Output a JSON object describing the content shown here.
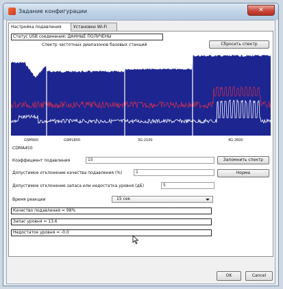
{
  "window": {
    "title": "Задание конфигурации",
    "close_label": "✕"
  },
  "tabs": [
    {
      "label": "Настройка подавления"
    },
    {
      "label": "Установки Wi-Fi"
    }
  ],
  "status": {
    "text": "Статус USB соединения: ДАННЫЕ ПОЛУЧЕНЫ"
  },
  "spectrum": {
    "title": "Спектр частотных диапазонов базовых станций",
    "reset_label": "Сбросить спектр",
    "bands": [
      "GSM900",
      "GSM1800",
      "3G-2100",
      "4G-2600"
    ],
    "mode": "CDMA450",
    "colors": {
      "fill": "#1c2590",
      "trace": "#ffffff",
      "peak": "#d93050"
    }
  },
  "fields": {
    "suppression_coef_label": "Коэффициент подавления",
    "suppression_coef_value": "15",
    "quality_deviation_label": "Допустимое отклонение качества подавления (%)",
    "quality_deviation_value": "1",
    "level_deviation_label": "Допустимое отклонение запаса или недостатка уровня (дБ)",
    "level_deviation_value": "5",
    "reaction_time_label": "Время реакции",
    "reaction_time_value": "15 сек"
  },
  "buttons": {
    "remember_spectrum": "Запомнить спектр",
    "norm": "Норма",
    "ok": "OK",
    "cancel": "Cancel"
  },
  "results": {
    "quality": "Качество подавления = 98%",
    "margin": "Запас уровня = 13.6",
    "shortage": "Недостаток уровня = -0.0"
  }
}
